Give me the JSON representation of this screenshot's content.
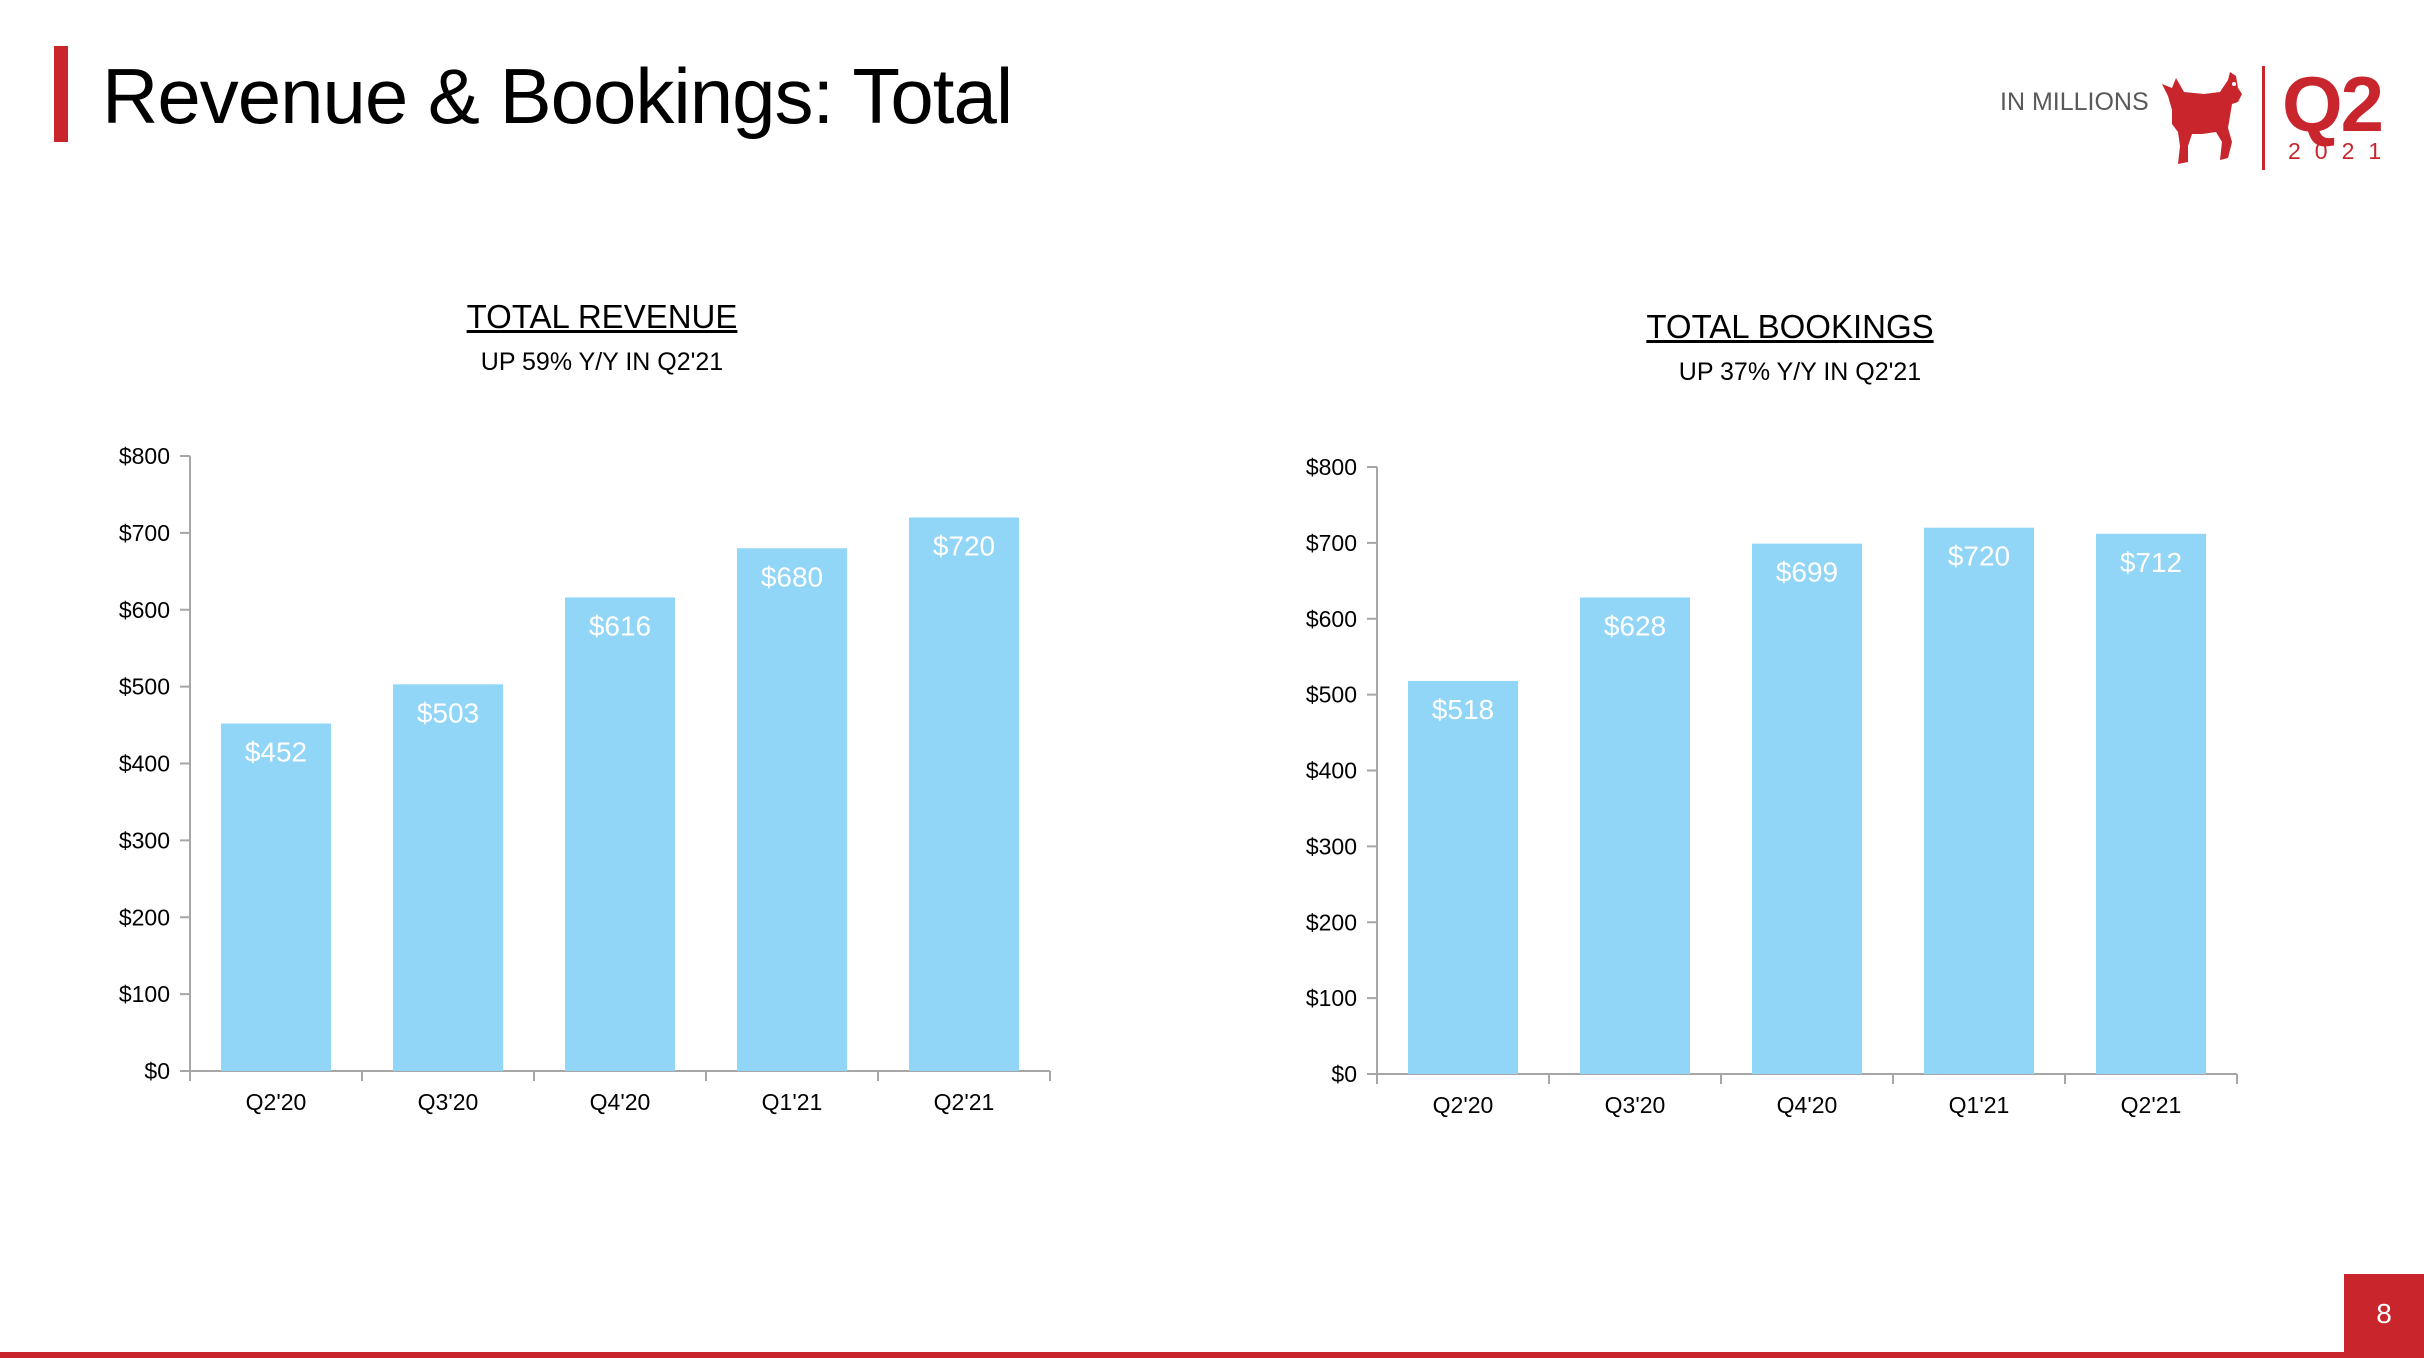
{
  "header": {
    "title": "Revenue & Bookings: Total",
    "units_note": "IN MILLIONS",
    "badge_quarter": "Q2",
    "badge_year": "2021",
    "logo_icon": "zynga-dog-logo-icon"
  },
  "colors": {
    "accent": "#c8252c",
    "bar": "#91d5f7",
    "bar_label": "#ffffff"
  },
  "footer": {
    "page_number": "8"
  },
  "chart_data": [
    {
      "type": "bar",
      "title": "TOTAL REVENUE",
      "subtitle": "UP 59% Y/Y IN Q2'21",
      "categories": [
        "Q2'20",
        "Q3'20",
        "Q4'20",
        "Q1'21",
        "Q2'21"
      ],
      "values": [
        452,
        503,
        616,
        680,
        720
      ],
      "value_labels": [
        "$452",
        "$503",
        "$616",
        "$680",
        "$720"
      ],
      "ylim": [
        0,
        800
      ],
      "yticks": [
        0,
        100,
        200,
        300,
        400,
        500,
        600,
        700,
        800
      ],
      "ytick_labels": [
        "$0",
        "$100",
        "$200",
        "$300",
        "$400",
        "$500",
        "$600",
        "$700",
        "$800"
      ],
      "grid": false
    },
    {
      "type": "bar",
      "title": "TOTAL BOOKINGS",
      "subtitle": "UP 37% Y/Y IN Q2'21",
      "categories": [
        "Q2'20",
        "Q3'20",
        "Q4'20",
        "Q1'21",
        "Q2'21"
      ],
      "values": [
        518,
        628,
        699,
        720,
        712
      ],
      "value_labels": [
        "$518",
        "$628",
        "$699",
        "$720",
        "$712"
      ],
      "ylim": [
        0,
        800
      ],
      "yticks": [
        0,
        100,
        200,
        300,
        400,
        500,
        600,
        700,
        800
      ],
      "ytick_labels": [
        "$0",
        "$100",
        "$200",
        "$300",
        "$400",
        "$500",
        "$600",
        "$700",
        "$800"
      ],
      "grid": false
    }
  ]
}
